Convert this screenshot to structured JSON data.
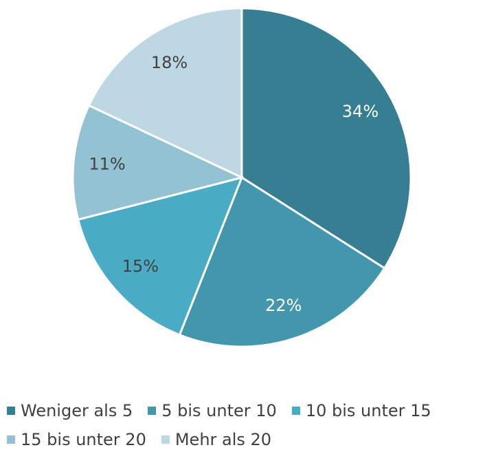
{
  "chart_data": {
    "type": "pie",
    "categories": [
      "Weniger als 5",
      "5 bis unter 10",
      "10 bis unter 15",
      "15 bis unter 20",
      "Mehr als 20"
    ],
    "values": [
      34,
      22,
      15,
      11,
      18
    ],
    "value_labels": [
      "34%",
      "22%",
      "15%",
      "11%",
      "18%"
    ],
    "colors": [
      "#367f93",
      "#4397ad",
      "#4aabc4",
      "#93c2d3",
      "#bdd7e3"
    ],
    "legend": "bottom"
  }
}
